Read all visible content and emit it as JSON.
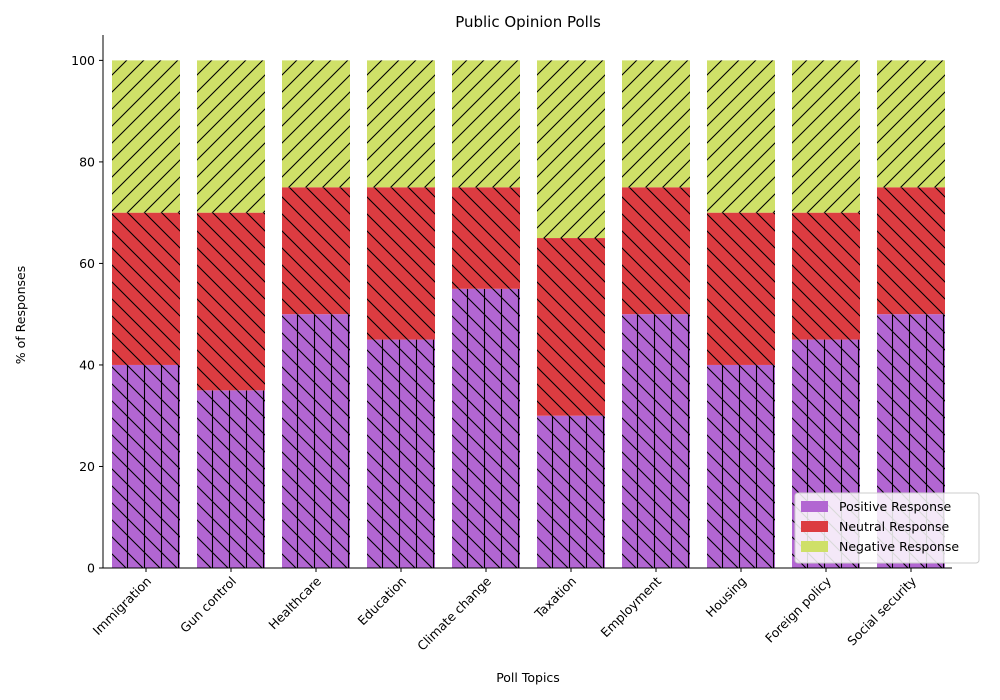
{
  "chart_data": {
    "type": "bar",
    "stacked": true,
    "title": "Public Opinion Polls",
    "xlabel": "Poll Topics",
    "ylabel": "% of Responses",
    "ylim": [
      0,
      105
    ],
    "yticks": [
      0,
      20,
      40,
      60,
      80,
      100
    ],
    "grid": false,
    "legend_position": "bottom-right",
    "categories": [
      "Immigration",
      "Gun control",
      "Healthcare",
      "Education",
      "Climate change",
      "Taxation",
      "Employment",
      "Housing",
      "Foreign policy",
      "Social security"
    ],
    "series": [
      {
        "name": "Positive Response",
        "color": "#b266d2",
        "hatch": "backslash-vertical",
        "values": [
          40,
          35,
          50,
          45,
          55,
          30,
          50,
          40,
          45,
          50
        ]
      },
      {
        "name": "Neutral Response",
        "color": "#dc3c41",
        "hatch": "backslash",
        "values": [
          30,
          35,
          25,
          30,
          20,
          35,
          25,
          30,
          25,
          25
        ]
      },
      {
        "name": "Negative Response",
        "color": "#cfe068",
        "hatch": "slash",
        "values": [
          30,
          30,
          25,
          25,
          25,
          35,
          25,
          30,
          30,
          25
        ]
      }
    ]
  }
}
